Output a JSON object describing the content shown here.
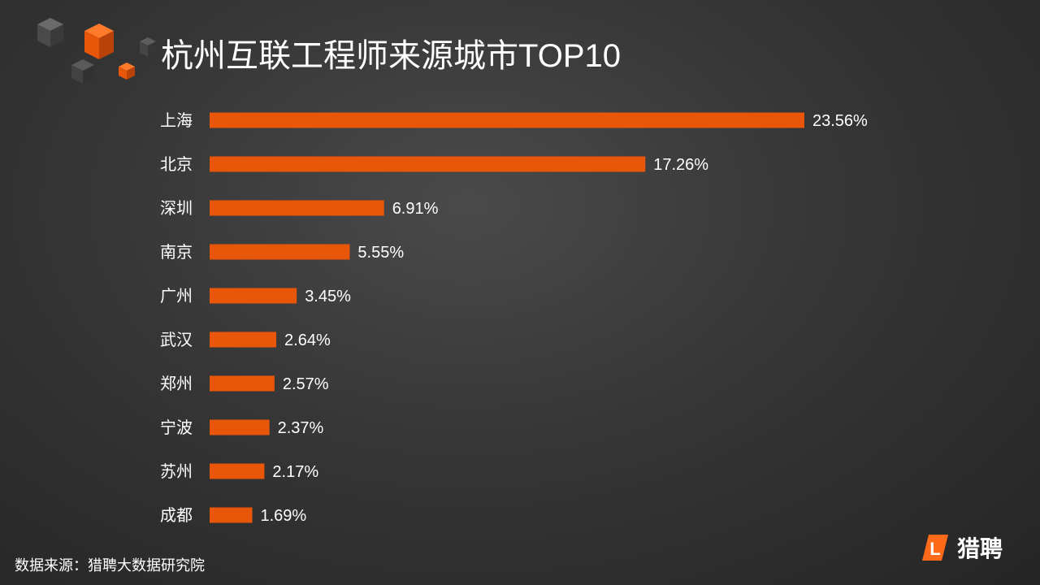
{
  "title": "杭州互联工程师来源城市TOP10",
  "colors": {
    "bar": "#e8560a",
    "background": "#333333",
    "text": "#ffffff"
  },
  "chart_data": {
    "type": "bar",
    "orientation": "horizontal",
    "title": "杭州互联工程师来源城市TOP10",
    "categories": [
      "上海",
      "北京",
      "深圳",
      "南京",
      "广州",
      "武汉",
      "郑州",
      "宁波",
      "苏州",
      "成都"
    ],
    "values": [
      23.56,
      17.26,
      6.91,
      5.55,
      3.45,
      2.64,
      2.57,
      2.37,
      2.17,
      1.69
    ],
    "data_labels": [
      "23.56%",
      "17.26%",
      "6.91%",
      "5.55%",
      "3.45%",
      "2.64%",
      "2.57%",
      "2.37%",
      "2.17%",
      "1.69%"
    ],
    "unit": "%",
    "xlim": [
      0,
      23.56
    ],
    "grid": false,
    "legend": "none"
  },
  "footer": {
    "source": "数据来源：猎聘大数据研究院"
  },
  "brand": {
    "logo_letter": "L",
    "name": "猎聘"
  }
}
